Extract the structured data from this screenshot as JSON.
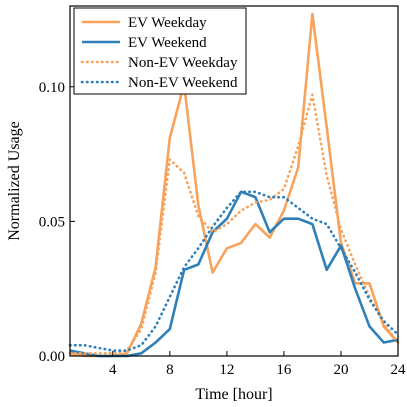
{
  "chart_data": {
    "type": "line",
    "title": "",
    "xlabel": "Time [hour]",
    "ylabel": "Normalized Usage",
    "xlim": [
      1,
      24
    ],
    "ylim": [
      0,
      0.13
    ],
    "xticks": [
      4,
      8,
      12,
      16,
      20,
      24
    ],
    "xtick_labels": [
      "4",
      "8",
      "12",
      "16",
      "20",
      "24"
    ],
    "yticks": [
      0,
      0.05,
      0.1
    ],
    "ytick_labels": [
      "0.00",
      "0.05",
      "0.10"
    ],
    "grid": false,
    "legend_position": "top-left",
    "x": [
      1,
      2,
      3,
      4,
      5,
      6,
      7,
      8,
      9,
      10,
      11,
      12,
      13,
      14,
      15,
      16,
      17,
      18,
      19,
      20,
      21,
      22,
      23,
      24
    ],
    "series": [
      {
        "name": "EV Weekday",
        "color": "#f7a35c",
        "dash": "solid",
        "values": [
          0.001,
          0.0,
          0.0,
          0.0,
          0.001,
          0.012,
          0.033,
          0.081,
          0.101,
          0.056,
          0.031,
          0.04,
          0.042,
          0.049,
          0.044,
          0.054,
          0.07,
          0.127,
          0.085,
          0.042,
          0.027,
          0.027,
          0.011,
          0.005
        ]
      },
      {
        "name": "EV Weekend",
        "color": "#2f7fb8",
        "dash": "solid",
        "values": [
          0.002,
          0.001,
          0.0,
          0.0,
          0.0,
          0.001,
          0.005,
          0.01,
          0.032,
          0.034,
          0.046,
          0.051,
          0.061,
          0.059,
          0.046,
          0.051,
          0.051,
          0.049,
          0.032,
          0.041,
          0.025,
          0.011,
          0.005,
          0.006
        ]
      },
      {
        "name": "Non-EV Weekday",
        "color": "#f7a35c",
        "dash": "dotted",
        "values": [
          0.001,
          0.001,
          0.001,
          0.001,
          0.002,
          0.01,
          0.031,
          0.073,
          0.068,
          0.052,
          0.046,
          0.049,
          0.054,
          0.057,
          0.058,
          0.062,
          0.078,
          0.097,
          0.067,
          0.047,
          0.034,
          0.022,
          0.012,
          0.005
        ]
      },
      {
        "name": "Non-EV Weekend",
        "color": "#2f7fb8",
        "dash": "dotted",
        "values": [
          0.004,
          0.004,
          0.003,
          0.002,
          0.002,
          0.004,
          0.011,
          0.022,
          0.033,
          0.04,
          0.048,
          0.055,
          0.061,
          0.061,
          0.059,
          0.059,
          0.055,
          0.051,
          0.049,
          0.04,
          0.031,
          0.021,
          0.013,
          0.008
        ]
      }
    ]
  }
}
